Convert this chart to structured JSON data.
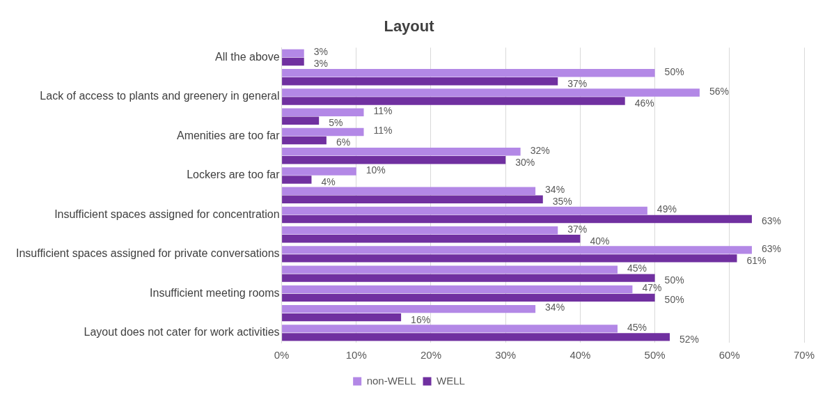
{
  "chart_data": {
    "type": "bar",
    "orientation": "horizontal",
    "title": "Layout",
    "categories": [
      "All the above",
      null,
      "Lack of access to plants and greenery in general",
      null,
      "Amenities are too far",
      null,
      "Lockers are too far",
      null,
      "Insufficient spaces assigned for concentration",
      null,
      "Insufficient spaces assigned for private conversations",
      null,
      "Insufficient meeting rooms",
      null,
      "Layout does not cater for work activities"
    ],
    "series": [
      {
        "name": "non-WELL",
        "color": "#b388e6",
        "values": [
          3,
          50,
          56,
          11,
          11,
          32,
          10,
          34,
          49,
          37,
          63,
          45,
          47,
          34,
          45
        ],
        "value_labels": [
          "3%",
          "50%",
          "56%",
          "11%",
          "11%",
          "32%",
          "10%",
          "34%",
          "49%",
          "37%",
          "63%",
          "45%",
          "47%",
          "34%",
          "45%"
        ]
      },
      {
        "name": "WELL",
        "color": "#7030a0",
        "values": [
          3,
          37,
          46,
          5,
          6,
          30,
          4,
          35,
          63,
          40,
          61,
          50,
          50,
          16,
          52
        ],
        "value_labels": [
          "3%",
          "37%",
          "46%",
          "5%",
          "6%",
          "30%",
          "4%",
          "35%",
          "63%",
          "40%",
          "61%",
          "50%",
          "50%",
          "16%",
          "52%"
        ]
      }
    ],
    "xlim": [
      0,
      70
    ],
    "xticks": [
      {
        "value": 0,
        "label": "0%"
      },
      {
        "value": 10,
        "label": "10%"
      },
      {
        "value": 20,
        "label": "20%"
      },
      {
        "value": 30,
        "label": "30%"
      },
      {
        "value": 40,
        "label": "40%"
      },
      {
        "value": 50,
        "label": "50%"
      },
      {
        "value": 60,
        "label": "60%"
      },
      {
        "value": 70,
        "label": "70%"
      }
    ],
    "grid": "x",
    "legend": "bottom"
  }
}
